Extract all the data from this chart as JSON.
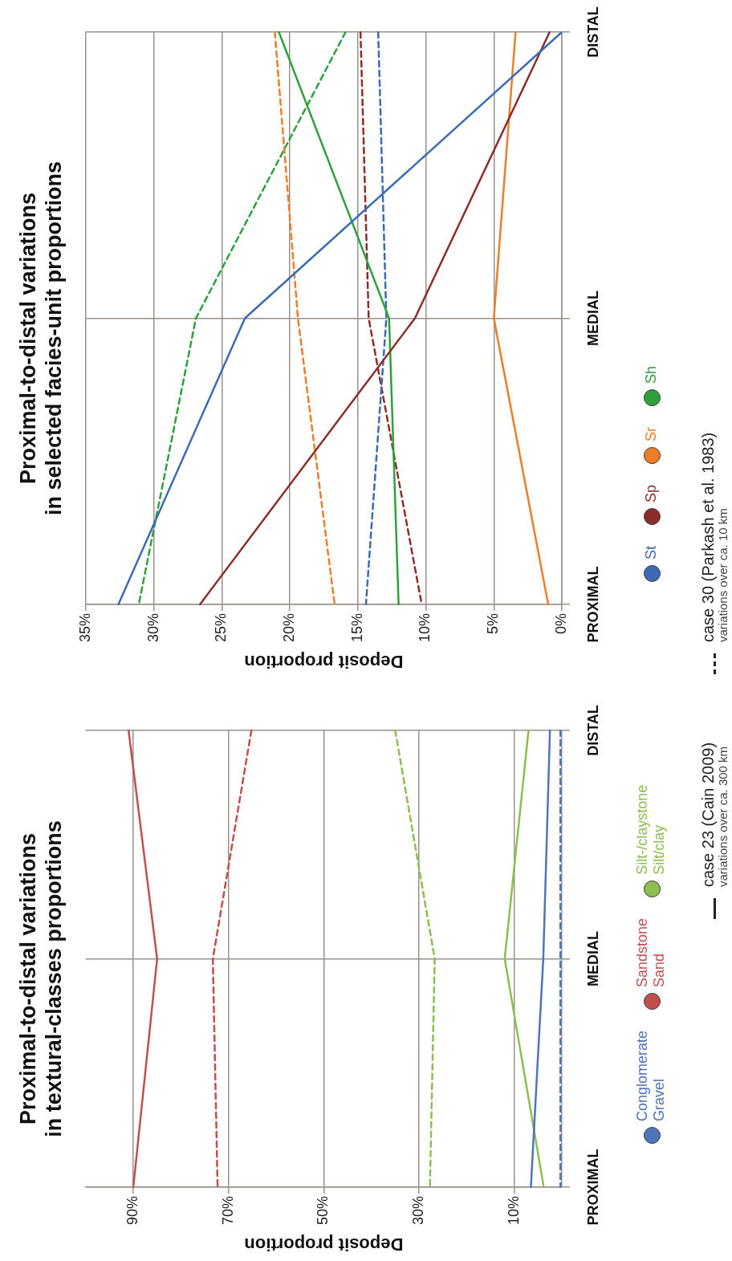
{
  "chart_data": [
    {
      "type": "line",
      "orientation": "horizontal",
      "title": "Proximal-to-distal variations\nin textural-classes proportions",
      "xlabel": "Deposit proportion",
      "categories": [
        "DISTAL",
        "MEDIAL",
        "PROXIMAL"
      ],
      "xlim": [
        100,
        0
      ],
      "xticks": [
        {
          "value": 90,
          "label": "90%"
        },
        {
          "value": 70,
          "label": "70%"
        },
        {
          "value": 50,
          "label": "50%"
        },
        {
          "value": 30,
          "label": "30%"
        },
        {
          "value": 10,
          "label": "10%"
        }
      ],
      "grid": true,
      "legend": "right",
      "marker": "none",
      "annotations": [
        "case 23 (Cain 2009)\nvariations over ca. 300 km"
      ],
      "series": [
        {
          "name": "Conglomerate\nGravel",
          "color": "#4f74b9",
          "line_style": "solid",
          "values": [
            2.5,
            3.9,
            6.5
          ]
        },
        {
          "color": "#4f74b9",
          "line_style": "dashed",
          "values": [
            0.3,
            0.3,
            0.3
          ]
        },
        {
          "name": "Sandstone\nSand",
          "color": "#c0504d",
          "line_style": "solid",
          "values": [
            91,
            85,
            90
          ]
        },
        {
          "color": "#c0504d",
          "line_style": "dashed",
          "values": [
            65.2,
            73.3,
            72.3
          ]
        },
        {
          "name": "Silt-/claystone\nSilt/clay",
          "color": "#8cbf4f",
          "line_style": "solid",
          "values": [
            7,
            12,
            3.8
          ]
        },
        {
          "color": "#8cbf4f",
          "line_style": "dashed",
          "values": [
            35,
            26.7,
            27.7
          ]
        }
      ]
    },
    {
      "type": "line",
      "orientation": "horizontal",
      "title": "Proximal-to-distal variations\nin selected facies-unit proportions",
      "xlabel": "Deposit proportion",
      "categories": [
        "DISTAL",
        "MEDIAL",
        "PROXIMAL"
      ],
      "xlim": [
        35,
        0
      ],
      "xticks": [
        {
          "value": 35,
          "label": "35%"
        },
        {
          "value": 30,
          "label": "30%"
        },
        {
          "value": 25,
          "label": "25%"
        },
        {
          "value": 20,
          "label": "20%"
        },
        {
          "value": 15,
          "label": "15%"
        },
        {
          "value": 10,
          "label": "10%"
        },
        {
          "value": 5,
          "label": "5%"
        },
        {
          "value": 0,
          "label": "0%"
        }
      ],
      "grid": true,
      "legend": "right",
      "marker": "none",
      "annotations": [
        "case 30 (Parkash et al. 1983)\nvariations over ca. 10 km"
      ],
      "series": [
        {
          "name": "St",
          "color": "#3d6bb3",
          "line_style": "solid",
          "values": [
            0,
            23.3,
            32.6
          ]
        },
        {
          "name": "Sp",
          "color": "#8b2e2a",
          "line_style": "solid",
          "values": [
            0.9,
            10.8,
            26.6
          ]
        },
        {
          "name": "Sr",
          "color": "#ee7d27",
          "line_style": "solid",
          "values": [
            3.4,
            5,
            1
          ]
        },
        {
          "name": "Sh",
          "color": "#2ea03c",
          "line_style": "solid",
          "values": [
            20.8,
            12.7,
            12
          ]
        },
        {
          "color": "#3d6bb3",
          "line_style": "dashed",
          "values": [
            13.5,
            12.9,
            14.4
          ]
        },
        {
          "color": "#8b2e2a",
          "line_style": "dashed",
          "values": [
            14.8,
            14.2,
            10.3
          ]
        },
        {
          "color": "#ee7d27",
          "line_style": "dashed",
          "values": [
            21.1,
            19.4,
            16.7
          ]
        },
        {
          "color": "#2ea03c",
          "line_style": "dashed",
          "values": [
            15.9,
            26.9,
            31.1
          ]
        }
      ]
    }
  ]
}
